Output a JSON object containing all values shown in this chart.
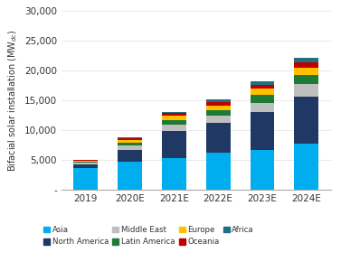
{
  "categories": [
    "2019",
    "2020E",
    "2021E",
    "2022E",
    "2023E",
    "2024E"
  ],
  "series": {
    "Asia": [
      3700,
      4700,
      5300,
      6200,
      6600,
      7700
    ],
    "North America": [
      600,
      2000,
      4500,
      5000,
      6400,
      7900
    ],
    "Middle East": [
      300,
      750,
      1100,
      1200,
      1600,
      2100
    ],
    "Latin America": [
      150,
      450,
      800,
      900,
      1300,
      1600
    ],
    "Europe": [
      100,
      450,
      700,
      800,
      1000,
      1200
    ],
    "Oceania": [
      100,
      280,
      450,
      600,
      700,
      800
    ],
    "Africa": [
      100,
      200,
      250,
      450,
      600,
      800
    ]
  },
  "colors": {
    "Asia": "#00AEEF",
    "North America": "#1F3864",
    "Middle East": "#BFBFBF",
    "Latin America": "#1E7B35",
    "Europe": "#FFC000",
    "Oceania": "#C00000",
    "Africa": "#1F7080"
  },
  "ylim": [
    0,
    30000
  ],
  "yticks": [
    0,
    5000,
    10000,
    15000,
    20000,
    25000,
    30000
  ],
  "yticklabels": [
    "-",
    "5,000",
    "10,000",
    "15,000",
    "20,000",
    "25,000",
    "30,000"
  ],
  "ylabel": "Bifacial solar installation (MW$_{dc}$)",
  "legend_order": [
    "Asia",
    "North America",
    "Middle East",
    "Latin America",
    "Europe",
    "Oceania",
    "Africa"
  ],
  "background_color": "#FFFFFF"
}
